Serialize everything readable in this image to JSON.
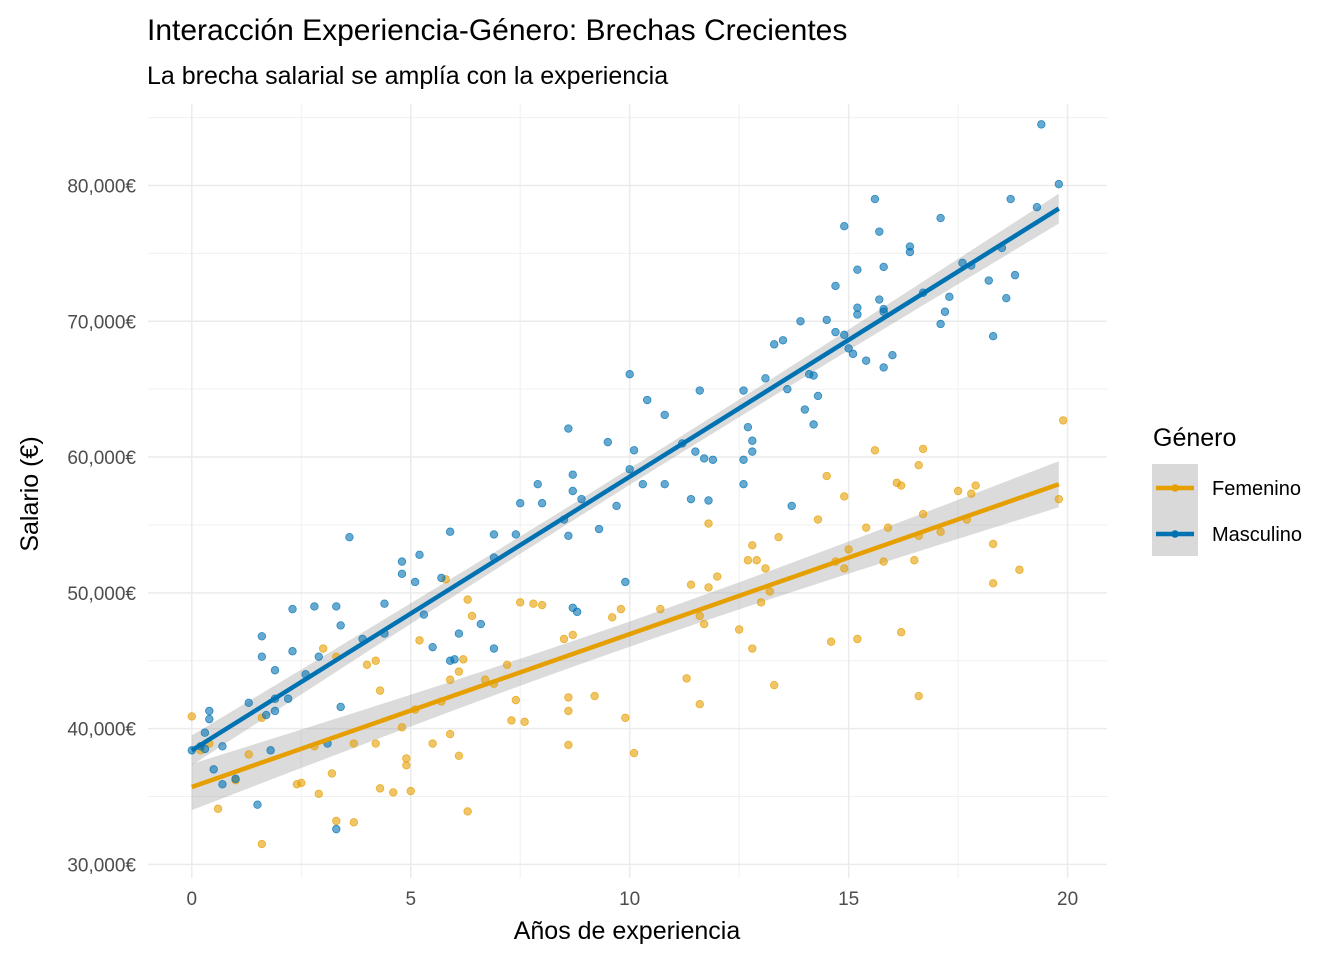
{
  "chart_data": {
    "type": "scatter",
    "title": "Interacción Experiencia-Género: Brechas Crecientes",
    "subtitle": "La brecha salarial se amplía con la experiencia",
    "xlabel": "Años de experiencia",
    "ylabel": "Salario (€)",
    "xlim": [
      -1,
      20.9
    ],
    "ylim": [
      29000,
      86000
    ],
    "x_ticks": [
      0,
      5,
      10,
      15,
      20
    ],
    "x_tick_labels": [
      "0",
      "5",
      "10",
      "15",
      "20"
    ],
    "y_ticks": [
      30000,
      40000,
      50000,
      60000,
      70000,
      80000
    ],
    "y_tick_labels": [
      "30,000€",
      "40,000€",
      "50,000€",
      "60,000€",
      "70,000€",
      "80,000€"
    ],
    "grid": true,
    "legend": {
      "title": "Género",
      "placement": "right"
    },
    "series": [
      {
        "name": "Femenino",
        "color": "#E69F00",
        "trend": {
          "x": [
            0,
            19.8
          ],
          "y": [
            35700,
            58000
          ],
          "band": 1700
        },
        "points": [
          [
            0,
            40900
          ],
          [
            0.2,
            38400
          ],
          [
            0.4,
            38900
          ],
          [
            0.6,
            34100
          ],
          [
            1.0,
            36200
          ],
          [
            1.3,
            38100
          ],
          [
            1.6,
            40800
          ],
          [
            1.6,
            31500
          ],
          [
            2.4,
            35900
          ],
          [
            2.5,
            36000
          ],
          [
            2.8,
            38700
          ],
          [
            2.9,
            35200
          ],
          [
            3.0,
            45900
          ],
          [
            3.2,
            36700
          ],
          [
            3.3,
            33200
          ],
          [
            3.3,
            45300
          ],
          [
            3.7,
            33100
          ],
          [
            3.7,
            38900
          ],
          [
            4.0,
            44700
          ],
          [
            4.2,
            38900
          ],
          [
            4.2,
            45000
          ],
          [
            4.3,
            42800
          ],
          [
            4.3,
            35600
          ],
          [
            4.6,
            35300
          ],
          [
            4.8,
            40100
          ],
          [
            4.9,
            37800
          ],
          [
            4.9,
            37300
          ],
          [
            5.0,
            35400
          ],
          [
            5.1,
            41400
          ],
          [
            5.2,
            46500
          ],
          [
            5.5,
            38900
          ],
          [
            5.7,
            42000
          ],
          [
            5.8,
            51000
          ],
          [
            5.9,
            43600
          ],
          [
            5.9,
            39600
          ],
          [
            6.1,
            44200
          ],
          [
            6.1,
            38000
          ],
          [
            6.2,
            45100
          ],
          [
            6.3,
            49500
          ],
          [
            6.3,
            33900
          ],
          [
            6.4,
            48300
          ],
          [
            6.7,
            43600
          ],
          [
            6.9,
            43300
          ],
          [
            7.2,
            44700
          ],
          [
            7.3,
            40600
          ],
          [
            7.4,
            42100
          ],
          [
            7.5,
            49300
          ],
          [
            7.6,
            40500
          ],
          [
            7.8,
            49200
          ],
          [
            8.0,
            49100
          ],
          [
            8.5,
            46600
          ],
          [
            8.6,
            42300
          ],
          [
            8.6,
            41300
          ],
          [
            8.6,
            38800
          ],
          [
            8.7,
            46900
          ],
          [
            9.2,
            42400
          ],
          [
            9.6,
            48200
          ],
          [
            9.8,
            48800
          ],
          [
            9.9,
            40800
          ],
          [
            10.1,
            38200
          ],
          [
            10.7,
            48800
          ],
          [
            11.3,
            43700
          ],
          [
            11.4,
            50600
          ],
          [
            11.6,
            48300
          ],
          [
            11.6,
            41800
          ],
          [
            11.7,
            47700
          ],
          [
            11.8,
            50400
          ],
          [
            11.8,
            55100
          ],
          [
            12.0,
            51200
          ],
          [
            12.5,
            47300
          ],
          [
            12.7,
            52400
          ],
          [
            12.8,
            53500
          ],
          [
            12.8,
            45900
          ],
          [
            12.9,
            52400
          ],
          [
            13.0,
            49300
          ],
          [
            13.1,
            51800
          ],
          [
            13.2,
            50100
          ],
          [
            13.3,
            43200
          ],
          [
            13.4,
            54100
          ],
          [
            14.3,
            55400
          ],
          [
            14.5,
            58600
          ],
          [
            14.6,
            46400
          ],
          [
            14.7,
            52300
          ],
          [
            14.9,
            51800
          ],
          [
            14.9,
            57100
          ],
          [
            15.0,
            53200
          ],
          [
            15.2,
            46600
          ],
          [
            15.4,
            54800
          ],
          [
            15.6,
            60500
          ],
          [
            15.8,
            52300
          ],
          [
            15.9,
            54800
          ],
          [
            16.1,
            58100
          ],
          [
            16.2,
            57900
          ],
          [
            16.2,
            47100
          ],
          [
            16.5,
            52400
          ],
          [
            16.6,
            59400
          ],
          [
            16.6,
            54200
          ],
          [
            16.6,
            42400
          ],
          [
            16.7,
            60600
          ],
          [
            16.7,
            55800
          ],
          [
            17.1,
            54500
          ],
          [
            17.5,
            57500
          ],
          [
            17.7,
            55400
          ],
          [
            17.8,
            57300
          ],
          [
            17.9,
            57900
          ],
          [
            18.3,
            50700
          ],
          [
            18.3,
            53600
          ],
          [
            18.9,
            51700
          ],
          [
            19.8,
            56900
          ],
          [
            19.9,
            62700
          ]
        ]
      },
      {
        "name": "Masculino",
        "color": "#0072B2",
        "trend": {
          "x": [
            0,
            19.8
          ],
          "y": [
            38400,
            78300
          ],
          "band": 1100
        },
        "points": [
          [
            0,
            38400
          ],
          [
            0.2,
            38700
          ],
          [
            0.3,
            39700
          ],
          [
            0.3,
            38500
          ],
          [
            0.4,
            40700
          ],
          [
            0.4,
            41300
          ],
          [
            0.5,
            37000
          ],
          [
            0.7,
            38700
          ],
          [
            0.7,
            35900
          ],
          [
            1.0,
            36300
          ],
          [
            1.3,
            41900
          ],
          [
            1.5,
            34400
          ],
          [
            1.6,
            46800
          ],
          [
            1.6,
            45300
          ],
          [
            1.7,
            41000
          ],
          [
            1.8,
            38400
          ],
          [
            1.9,
            42200
          ],
          [
            1.9,
            41300
          ],
          [
            1.9,
            44300
          ],
          [
            2.2,
            42200
          ],
          [
            2.3,
            48800
          ],
          [
            2.3,
            45700
          ],
          [
            2.6,
            44000
          ],
          [
            2.8,
            49000
          ],
          [
            2.9,
            45300
          ],
          [
            3.1,
            38900
          ],
          [
            3.3,
            49000
          ],
          [
            3.3,
            32600
          ],
          [
            3.4,
            47600
          ],
          [
            3.4,
            41600
          ],
          [
            3.6,
            54100
          ],
          [
            3.9,
            46600
          ],
          [
            4.4,
            47000
          ],
          [
            4.4,
            49200
          ],
          [
            4.8,
            51400
          ],
          [
            4.8,
            52300
          ],
          [
            5.1,
            50800
          ],
          [
            5.2,
            52800
          ],
          [
            5.3,
            48400
          ],
          [
            5.5,
            46000
          ],
          [
            5.7,
            51100
          ],
          [
            5.9,
            45000
          ],
          [
            5.9,
            54500
          ],
          [
            6.0,
            45100
          ],
          [
            6.1,
            47000
          ],
          [
            6.6,
            47700
          ],
          [
            6.9,
            45900
          ],
          [
            6.9,
            54300
          ],
          [
            6.9,
            52600
          ],
          [
            7.4,
            54300
          ],
          [
            7.5,
            56600
          ],
          [
            7.9,
            58000
          ],
          [
            8.0,
            56600
          ],
          [
            8.5,
            55400
          ],
          [
            8.6,
            62100
          ],
          [
            8.6,
            54200
          ],
          [
            8.7,
            57500
          ],
          [
            8.7,
            58700
          ],
          [
            8.7,
            48900
          ],
          [
            8.8,
            48600
          ],
          [
            8.9,
            56900
          ],
          [
            9.3,
            54700
          ],
          [
            9.5,
            61100
          ],
          [
            9.7,
            56400
          ],
          [
            9.9,
            50800
          ],
          [
            10.0,
            66100
          ],
          [
            10.0,
            59100
          ],
          [
            10.1,
            60500
          ],
          [
            10.3,
            58000
          ],
          [
            10.4,
            64200
          ],
          [
            10.8,
            58000
          ],
          [
            10.8,
            63100
          ],
          [
            11.2,
            61000
          ],
          [
            11.4,
            56900
          ],
          [
            11.5,
            60400
          ],
          [
            11.6,
            64900
          ],
          [
            11.7,
            59900
          ],
          [
            11.8,
            56800
          ],
          [
            11.9,
            59800
          ],
          [
            12.6,
            64900
          ],
          [
            12.6,
            58000
          ],
          [
            12.6,
            59800
          ],
          [
            12.7,
            62200
          ],
          [
            12.8,
            61200
          ],
          [
            12.8,
            60400
          ],
          [
            13.1,
            65800
          ],
          [
            13.3,
            68300
          ],
          [
            13.5,
            68600
          ],
          [
            13.6,
            65000
          ],
          [
            13.7,
            56400
          ],
          [
            13.9,
            70000
          ],
          [
            14.0,
            63500
          ],
          [
            14.1,
            66100
          ],
          [
            14.2,
            62400
          ],
          [
            14.2,
            66000
          ],
          [
            14.3,
            64500
          ],
          [
            14.5,
            70100
          ],
          [
            14.7,
            72600
          ],
          [
            14.7,
            69200
          ],
          [
            14.9,
            69000
          ],
          [
            14.9,
            77000
          ],
          [
            15.0,
            68000
          ],
          [
            15.1,
            67600
          ],
          [
            15.2,
            70500
          ],
          [
            15.2,
            73800
          ],
          [
            15.2,
            71000
          ],
          [
            15.4,
            67100
          ],
          [
            15.6,
            79000
          ],
          [
            15.7,
            76600
          ],
          [
            15.7,
            71600
          ],
          [
            15.8,
            74000
          ],
          [
            15.8,
            66600
          ],
          [
            15.8,
            70700
          ],
          [
            15.8,
            70900
          ],
          [
            16.0,
            67500
          ],
          [
            16.4,
            75500
          ],
          [
            16.4,
            75100
          ],
          [
            16.7,
            72100
          ],
          [
            17.1,
            69800
          ],
          [
            17.1,
            77600
          ],
          [
            17.2,
            70700
          ],
          [
            17.3,
            71800
          ],
          [
            17.6,
            74300
          ],
          [
            17.8,
            74100
          ],
          [
            18.2,
            73000
          ],
          [
            18.3,
            68900
          ],
          [
            18.5,
            75400
          ],
          [
            18.6,
            71700
          ],
          [
            18.7,
            79000
          ],
          [
            18.8,
            73400
          ],
          [
            19.3,
            78400
          ],
          [
            19.4,
            84500
          ],
          [
            19.8,
            80100
          ]
        ]
      }
    ]
  }
}
